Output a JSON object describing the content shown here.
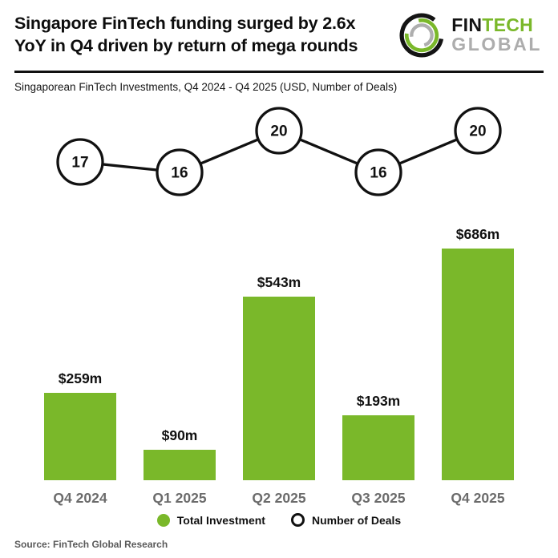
{
  "header": {
    "title_line1": "Singapore FinTech funding surged by 2.6x",
    "title_line2": "YoY in Q4 driven by return of mega rounds",
    "logo": {
      "icon": "fintech-global-ring-logo-icon",
      "word1": "FIN",
      "word2": "TECH",
      "word3": "GLOBAL",
      "colors": {
        "fin": "#141414",
        "tech": "#7ab82a",
        "global": "#adadad"
      }
    }
  },
  "subtitle": "Singaporean FinTech Investments, Q4 2024 - Q4 2025 (USD, Number of Deals)",
  "chart_data": {
    "type": "bar",
    "title": "Singaporean FinTech Investments, Q4 2024 - Q4 2025 (USD, Number of Deals)",
    "categories": [
      "Q4 2024",
      "Q1 2025",
      "Q2 2025",
      "Q3 2025",
      "Q4 2025"
    ],
    "series": [
      {
        "name": "Total Investment",
        "type": "bar",
        "values": [
          259,
          90,
          543,
          193,
          686
        ],
        "labels": [
          "$259m",
          "$90m",
          "$543m",
          "$193m",
          "$686m"
        ],
        "unit": "USD millions",
        "color": "#7ab82a"
      },
      {
        "name": "Number of Deals",
        "type": "line",
        "values": [
          17,
          16,
          20,
          16,
          20
        ],
        "marker": "open-circle",
        "line_color": "#111111",
        "marker_fill": "#ffffff"
      }
    ],
    "xlabel": "",
    "ylabel": "",
    "grid": false,
    "axes_shown": false,
    "legend_position": "bottom"
  },
  "legend": {
    "total_investment": "Total Investment",
    "number_of_deals": "Number of Deals"
  },
  "source": "Source: FinTech Global Research",
  "colors": {
    "accent_green": "#7ab82a",
    "axis_label_gray": "#6b6b6b",
    "source_gray": "#595959",
    "line_black": "#111111"
  }
}
